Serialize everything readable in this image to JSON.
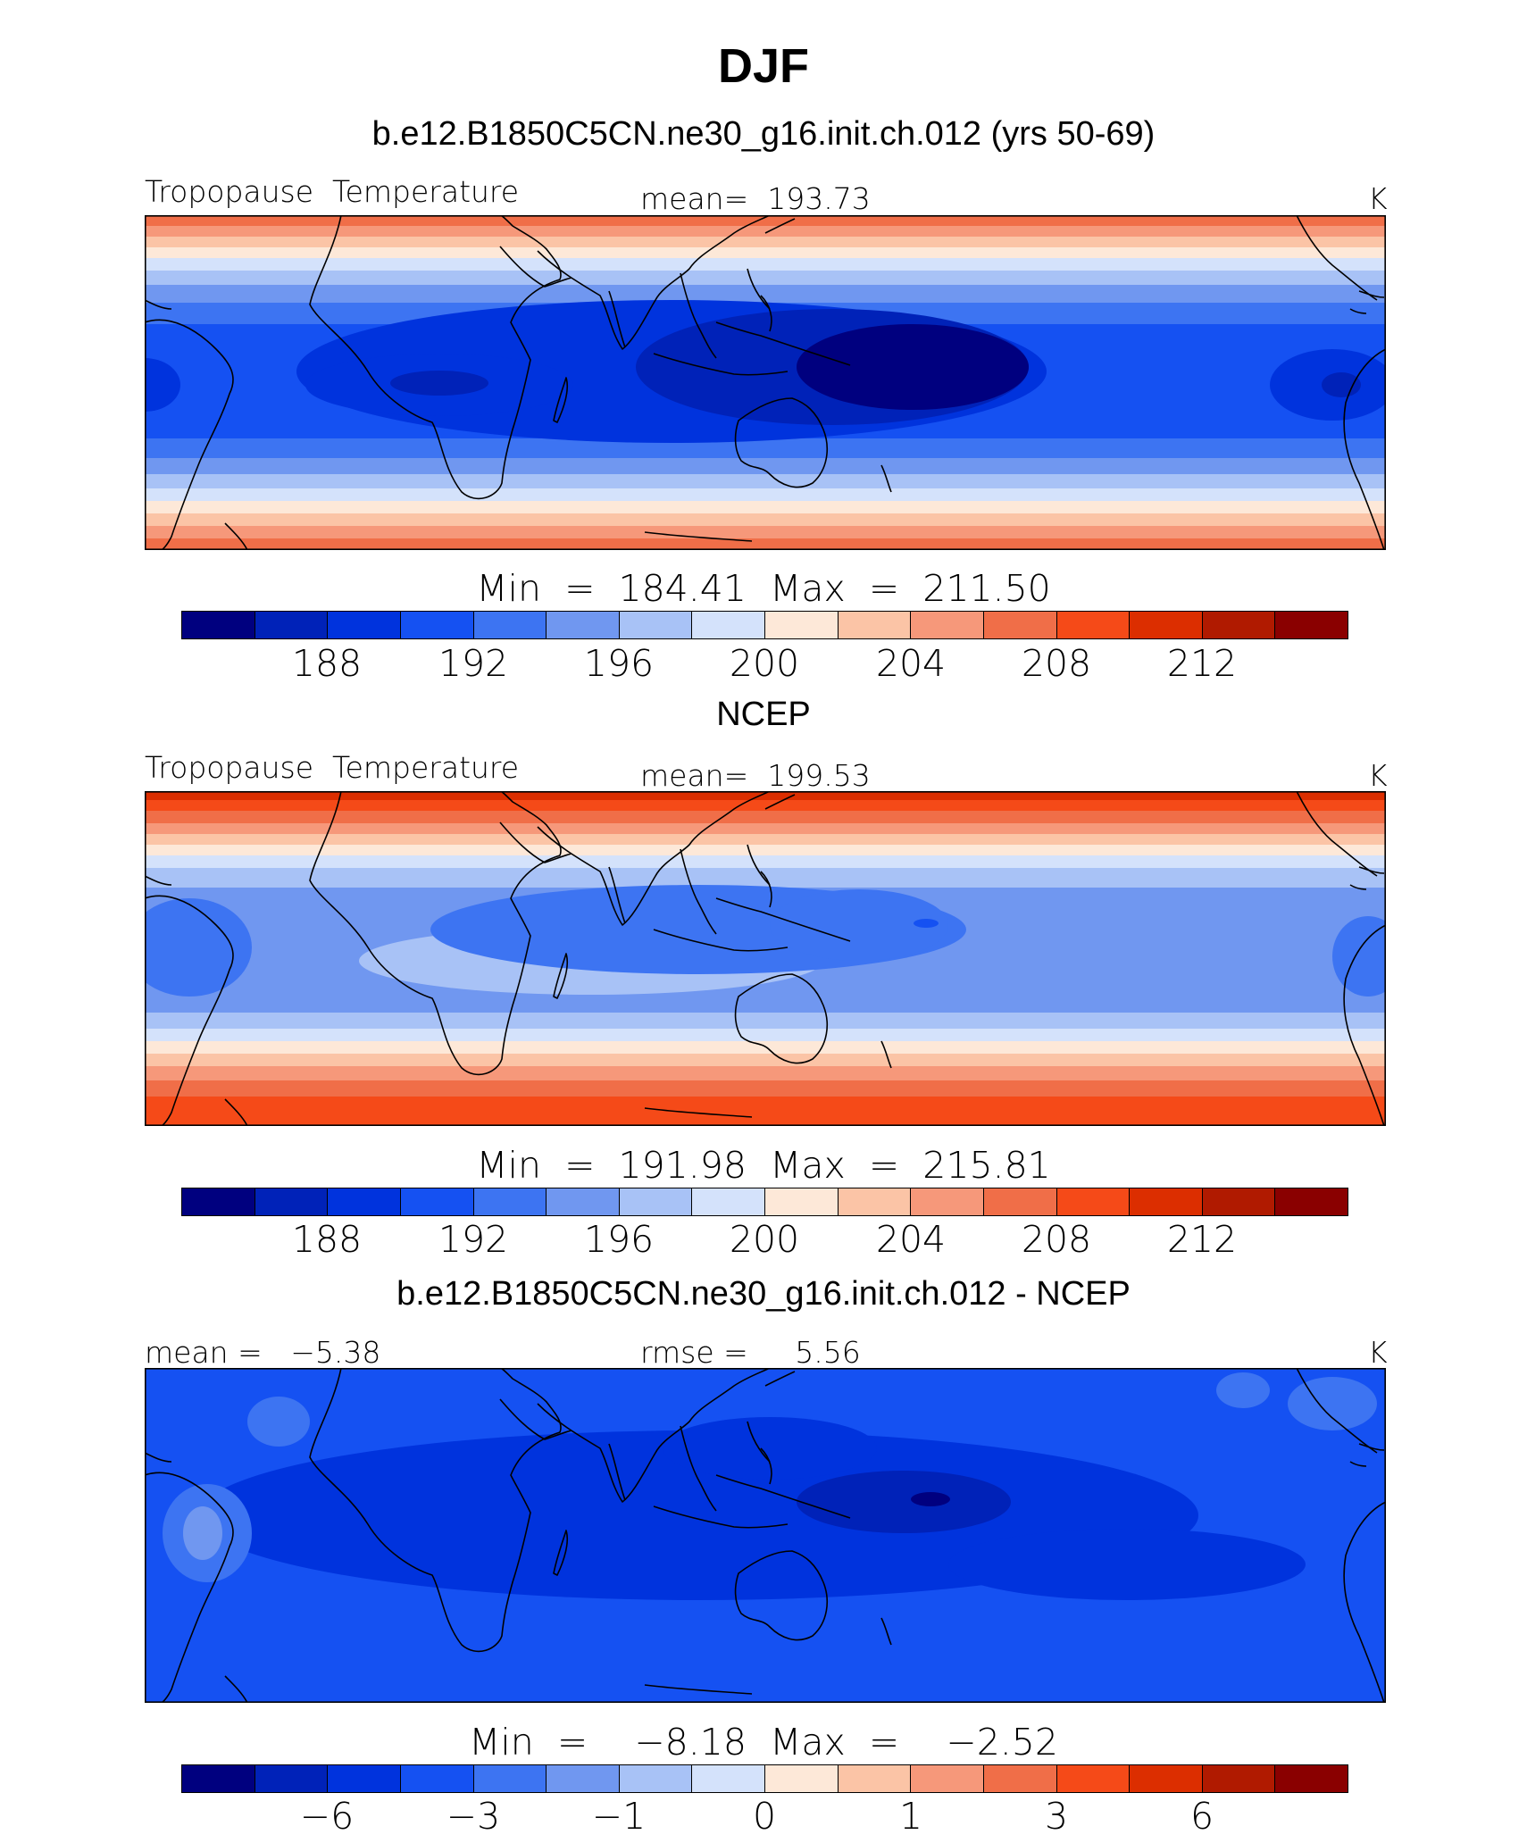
{
  "title": "DJF",
  "palette": [
    "#00007f",
    "#0022b8",
    "#0033dd",
    "#1551f2",
    "#3d74f2",
    "#7097f0",
    "#a8c2f6",
    "#d4e2fb",
    "#fde8d8",
    "#fbc4a6",
    "#f6987a",
    "#f06e48",
    "#f54a18",
    "#dc2e00",
    "#b01a00",
    "#8a0000"
  ],
  "panels": [
    {
      "case_title": "b.e12.B1850C5CN.ne30_g16.init.ch.012 (yrs 50-69)",
      "left_label": "Tropopause  Temperature",
      "center_label": "mean=  193.73",
      "units": "K",
      "minmax": "Min  =  184.41  Max  =  211.50",
      "ticks": [
        "188",
        "192",
        "196",
        "200",
        "204",
        "208",
        "212"
      ]
    },
    {
      "case_title": "NCEP",
      "left_label": "Tropopause  Temperature",
      "center_label": "mean=  199.53",
      "units": "K",
      "minmax": "Min  =  191.98  Max  =  215.81",
      "ticks": [
        "188",
        "192",
        "196",
        "200",
        "204",
        "208",
        "212"
      ]
    },
    {
      "case_title": "b.e12.B1850C5CN.ne30_g16.init.ch.012 - NCEP",
      "left_label": "mean =   −5.38",
      "center_label": "rmse =     5.56",
      "units": "K",
      "minmax": "Min  =    −8.18  Max  =    −2.52",
      "ticks": [
        "−6",
        "−3",
        "−1",
        "0",
        "1",
        "3",
        "6"
      ]
    }
  ]
}
